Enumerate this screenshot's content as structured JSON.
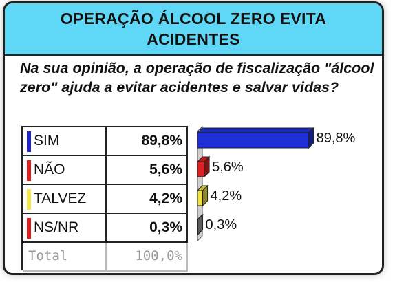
{
  "title": "OPERAÇÃO ÁLCOOL ZERO EVITA ACIDENTES",
  "question": "Na sua opinião, a operação de fiscalização \"álcool zero\" ajuda a evitar acidentes e salvar vidas?",
  "table": {
    "rows": [
      {
        "label": "SIM",
        "value": "89,8%",
        "color": "#2020c8"
      },
      {
        "label": "NÃO",
        "value": "5,6%",
        "color": "#e02020"
      },
      {
        "label": "TALVEZ",
        "value": "4,2%",
        "color": "#f2e84a"
      },
      {
        "label": "NS/NR",
        "value": "0,3%",
        "color": "#e02020"
      }
    ],
    "total_label": "Total",
    "total_value": "100,0%"
  },
  "chart_data": {
    "type": "bar",
    "orientation": "horizontal",
    "categories": [
      "SIM",
      "NÃO",
      "TALVEZ",
      "NS/NR"
    ],
    "values": [
      89.8,
      5.6,
      4.2,
      0.3
    ],
    "data_labels": [
      "89,8%",
      "5,6%",
      "4,2%",
      "0,3%"
    ],
    "colors": [
      "#2030d8",
      "#e02020",
      "#f0e040",
      "#9a9a9a"
    ],
    "xlim": [
      0,
      100
    ]
  }
}
